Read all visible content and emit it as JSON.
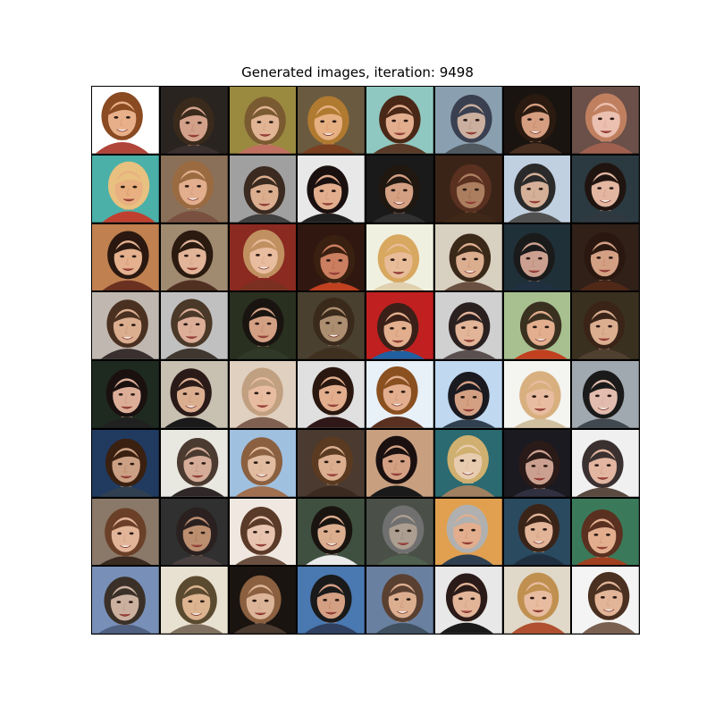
{
  "title": "Generated images, iteration: 9498",
  "grid": {
    "rows": 8,
    "cols": 8
  },
  "tiles": [
    {
      "bg": "#ffffff",
      "skin": "#e0a27a",
      "hair": "#8a4a22",
      "face": "#e8b08a",
      "shirt": "#b0453a"
    },
    {
      "bg": "#2a2420",
      "skin": "#c99078",
      "hair": "#3a2a1c",
      "face": "#d3a18a",
      "shirt": "#3a3030"
    },
    {
      "bg": "#9a8a40",
      "skin": "#d8a888",
      "hair": "#7a5a30",
      "face": "#e0b494",
      "shirt": "#c07060"
    },
    {
      "bg": "#6a5a40",
      "skin": "#e0a070",
      "hair": "#b07a30",
      "face": "#e6b083",
      "shirt": "#7a4020"
    },
    {
      "bg": "#8fc8c0",
      "skin": "#d8a080",
      "hair": "#4a2818",
      "face": "#e2ae8e",
      "shirt": "#5a3a28"
    },
    {
      "bg": "#8aa0b0",
      "skin": "#c0a090",
      "hair": "#3a4050",
      "face": "#cbb0a0",
      "shirt": "#505860"
    },
    {
      "bg": "#1a1410",
      "skin": "#c89070",
      "hair": "#2a1a10",
      "face": "#d69e80",
      "shirt": "#4a3020"
    },
    {
      "bg": "#6a5048",
      "skin": "#e0b0a0",
      "hair": "#c08060",
      "face": "#ebc0b0",
      "shirt": "#a06050"
    },
    {
      "bg": "#4ab0a8",
      "skin": "#e0a070",
      "hair": "#e8c080",
      "face": "#e8b080",
      "shirt": "#c04030"
    },
    {
      "bg": "#8a7058",
      "skin": "#d8a080",
      "hair": "#9a6a40",
      "face": "#e2ae8e",
      "shirt": "#7a5040"
    },
    {
      "bg": "#a0a0a0",
      "skin": "#d0a080",
      "hair": "#3a2a20",
      "face": "#dcae90",
      "shirt": "#404040"
    },
    {
      "bg": "#e8e8e8",
      "skin": "#d8a080",
      "hair": "#1a1010",
      "face": "#e2ae8e",
      "shirt": "#202020"
    },
    {
      "bg": "#1a1a1a",
      "skin": "#c89070",
      "hair": "#201810",
      "face": "#d4a084",
      "shirt": "#303030"
    },
    {
      "bg": "#3a2418",
      "skin": "#a07050",
      "hair": "#5a3020",
      "face": "#ac7e60",
      "shirt": "#402818"
    },
    {
      "bg": "#c0d0e0",
      "skin": "#c8a088",
      "hair": "#2a2a2a",
      "face": "#d4b098",
      "shirt": "#505050"
    },
    {
      "bg": "#2a3a40",
      "skin": "#d8a890",
      "hair": "#201410",
      "face": "#e2b6a0",
      "shirt": "#303840"
    },
    {
      "bg": "#c08050",
      "skin": "#d8a080",
      "hair": "#2a1810",
      "face": "#e4b08e",
      "shirt": "#6a3020"
    },
    {
      "bg": "#a08a70",
      "skin": "#d8a888",
      "hair": "#2a1a10",
      "face": "#e2b498",
      "shirt": "#503020"
    },
    {
      "bg": "#8a2a20",
      "skin": "#e0b090",
      "hair": "#c09060",
      "face": "#e8bc9e",
      "shirt": "#7a3020"
    },
    {
      "bg": "#301810",
      "skin": "#c07050",
      "hair": "#3a2010",
      "face": "#cc7e60",
      "shirt": "#c04020"
    },
    {
      "bg": "#f0f0e0",
      "skin": "#e0b088",
      "hair": "#d8a860",
      "face": "#e8bc98",
      "shirt": "#e0d0b0"
    },
    {
      "bg": "#d8d0c0",
      "skin": "#d0a080",
      "hair": "#3a2818",
      "face": "#dcae90",
      "shirt": "#6a5040"
    },
    {
      "bg": "#203038",
      "skin": "#c09080",
      "hair": "#1a1a1a",
      "face": "#cca090",
      "shirt": "#203040"
    },
    {
      "bg": "#302018",
      "skin": "#c89070",
      "hair": "#2a1810",
      "face": "#d4a084",
      "shirt": "#502818"
    },
    {
      "bg": "#c0b8b0",
      "skin": "#d0a080",
      "hair": "#4a3020",
      "face": "#dcae90",
      "shirt": "#3a3030"
    },
    {
      "bg": "#c0c0c0",
      "skin": "#d0a088",
      "hair": "#4a3828",
      "face": "#dcae98",
      "shirt": "#403830"
    },
    {
      "bg": "#2a3020",
      "skin": "#c89070",
      "hair": "#1a1410",
      "face": "#d4a084",
      "shirt": "#303828"
    },
    {
      "bg": "#4a4030",
      "skin": "#a08060",
      "hair": "#3a2a1c",
      "face": "#ac8e70",
      "shirt": "#403020"
    },
    {
      "bg": "#c02020",
      "skin": "#d8a080",
      "hair": "#3a2018",
      "face": "#e2ae8e",
      "shirt": "#2060a0"
    },
    {
      "bg": "#d0d0d0",
      "skin": "#d8a888",
      "hair": "#2a2020",
      "face": "#e2b498",
      "shirt": "#5a5050"
    },
    {
      "bg": "#a8c090",
      "skin": "#d8a080",
      "hair": "#3a3020",
      "face": "#e2ae8e",
      "shirt": "#c04020"
    },
    {
      "bg": "#3a3020",
      "skin": "#d0a080",
      "hair": "#3a2418",
      "face": "#dcae90",
      "shirt": "#504030"
    },
    {
      "bg": "#1e2a20",
      "skin": "#d0a088",
      "hair": "#1a1010",
      "face": "#dcae98",
      "shirt": "#202020"
    },
    {
      "bg": "#c8c0b0",
      "skin": "#d0a080",
      "hair": "#2a1a18",
      "face": "#dcae90",
      "shirt": "#1a1a1a"
    },
    {
      "bg": "#e0d0c0",
      "skin": "#e0b090",
      "hair": "#c0a080",
      "face": "#e8bca0",
      "shirt": "#806050"
    },
    {
      "bg": "#e0e0e0",
      "skin": "#d8a080",
      "hair": "#2a1810",
      "face": "#e2ae8e",
      "shirt": "#301818"
    },
    {
      "bg": "#e8f0f8",
      "skin": "#d8a080",
      "hair": "#8a5020",
      "face": "#e2ae8e",
      "shirt": "#5a3020"
    },
    {
      "bg": "#c0d8f0",
      "skin": "#c89070",
      "hair": "#1a1a20",
      "face": "#d4a084",
      "shirt": "#304050"
    },
    {
      "bg": "#f4f4f0",
      "skin": "#e0b090",
      "hair": "#d8b080",
      "face": "#e8bca0",
      "shirt": "#d0c0a0"
    },
    {
      "bg": "#a0a8b0",
      "skin": "#d8b0a0",
      "hair": "#1a1a1a",
      "face": "#e2bcae",
      "shirt": "#404850"
    },
    {
      "bg": "#203a60",
      "skin": "#c09070",
      "hair": "#3a2010",
      "face": "#cca084",
      "shirt": "#304050"
    },
    {
      "bg": "#e8e8e0",
      "skin": "#c8a088",
      "hair": "#4a3a30",
      "face": "#d4ac98",
      "shirt": "#302828"
    },
    {
      "bg": "#a0c0e0",
      "skin": "#d8b090",
      "hair": "#8a6040",
      "face": "#e2bca0",
      "shirt": "#a07050"
    },
    {
      "bg": "#4a3a30",
      "skin": "#d0a080",
      "hair": "#5a3a20",
      "face": "#dcae90",
      "shirt": "#3a2a20"
    },
    {
      "bg": "#c8a080",
      "skin": "#c89070",
      "hair": "#1a1010",
      "face": "#d4a084",
      "shirt": "#1a1a1a"
    },
    {
      "bg": "#2a6a70",
      "skin": "#e0c0a0",
      "hair": "#d0b070",
      "face": "#e8ccb0",
      "shirt": "#a08060"
    },
    {
      "bg": "#1a1a20",
      "skin": "#c09080",
      "hair": "#2a1a18",
      "face": "#cca090",
      "shirt": "#303040"
    },
    {
      "bg": "#f0f0f0",
      "skin": "#d8a890",
      "hair": "#3a3030",
      "face": "#e2b6a0",
      "shirt": "#5a4a40"
    },
    {
      "bg": "#8a7868",
      "skin": "#d8a888",
      "hair": "#6a4028",
      "face": "#e2b498",
      "shirt": "#3a2a20"
    },
    {
      "bg": "#303030",
      "skin": "#b08060",
      "hair": "#2a2020",
      "face": "#bc8e70",
      "shirt": "#4a4040"
    },
    {
      "bg": "#f0e8e0",
      "skin": "#e0b8a0",
      "hair": "#5a3a28",
      "face": "#e8c4b0",
      "shirt": "#6a5040"
    },
    {
      "bg": "#405040",
      "skin": "#d0a080",
      "hair": "#1a1410",
      "face": "#dcae90",
      "shirt": "#eaeaea"
    },
    {
      "bg": "#4a5048",
      "skin": "#a09080",
      "hair": "#707070",
      "face": "#ac9e90",
      "shirt": "#506050"
    },
    {
      "bg": "#e0a050",
      "skin": "#d8a080",
      "hair": "#b0b0b0",
      "face": "#e2ae8e",
      "shirt": "#304050"
    },
    {
      "bg": "#2a4a60",
      "skin": "#d8a888",
      "hair": "#3a2418",
      "face": "#e2b498",
      "shirt": "#203040"
    },
    {
      "bg": "#3a7a5a",
      "skin": "#d8a080",
      "hair": "#5a3020",
      "face": "#e2ae8e",
      "shirt": "#a04020"
    },
    {
      "bg": "#7890b8",
      "skin": "#c0a090",
      "hair": "#3a3028",
      "face": "#cbb0a0",
      "shirt": "#506080"
    },
    {
      "bg": "#e8e0d0",
      "skin": "#d0a880",
      "hair": "#5a4a30",
      "face": "#dcb490",
      "shirt": "#807060"
    },
    {
      "bg": "#1a1410",
      "skin": "#d0a888",
      "hair": "#8a6040",
      "face": "#dcb498",
      "shirt": "#4a3a30"
    },
    {
      "bg": "#4a78b0",
      "skin": "#c89070",
      "hair": "#1a1a1a",
      "face": "#d4a084",
      "shirt": "#304060"
    },
    {
      "bg": "#6a80a0",
      "skin": "#d0a080",
      "hair": "#5a4030",
      "face": "#dcae90",
      "shirt": "#405060"
    },
    {
      "bg": "#e8e8e8",
      "skin": "#d8a888",
      "hair": "#2a1a18",
      "face": "#e2b498",
      "shirt": "#1a1a1a"
    },
    {
      "bg": "#e0d8c8",
      "skin": "#e0b090",
      "hair": "#c09050",
      "face": "#e8bca0",
      "shirt": "#b05030"
    },
    {
      "bg": "#f4f4f4",
      "skin": "#d8a888",
      "hair": "#4a3020",
      "face": "#e2b498",
      "shirt": "#7a6050"
    }
  ]
}
